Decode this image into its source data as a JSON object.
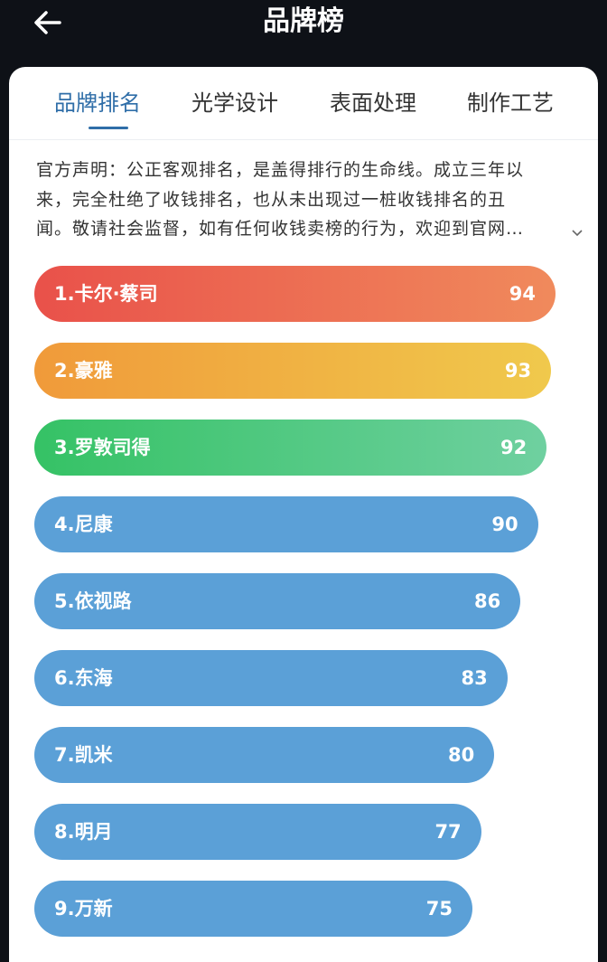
{
  "header": {
    "title": "品牌榜"
  },
  "tabs": [
    "品牌排名",
    "光学设计",
    "表面处理",
    "制作工艺"
  ],
  "notice": [
    "官方声明：公正客观排名，是盖得排行的生命线。成立三年以",
    "来，完全杜绝了收钱排名，也从未出现过一桩收钱排名的丑",
    "闻。敬请社会监督，如有任何收钱卖榜的行为，欢迎到官网…"
  ],
  "ranking": {
    "items": [
      {
        "name": "1.卡尔·蔡司",
        "score": 94
      },
      {
        "name": "2.豪雅",
        "score": 93
      },
      {
        "name": "3.罗敦司得",
        "score": 92
      },
      {
        "name": "4.尼康",
        "score": 90
      },
      {
        "name": "5.依视路",
        "score": 86
      },
      {
        "name": "6.东海",
        "score": 83
      },
      {
        "name": "7.凯米",
        "score": 80
      },
      {
        "name": "8.明月",
        "score": 77
      },
      {
        "name": "9.万新",
        "score": 75
      }
    ]
  }
}
